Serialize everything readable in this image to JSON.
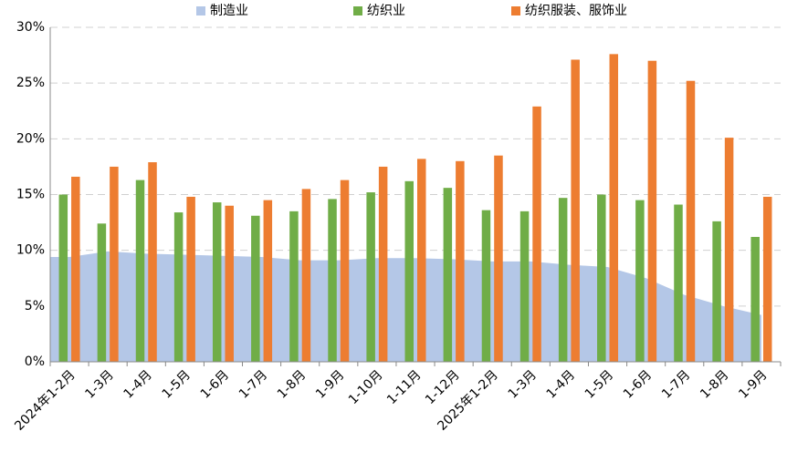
{
  "chart_data": {
    "type": "bar",
    "categories": [
      "2024年1-2月",
      "1-3月",
      "1-4月",
      "1-5月",
      "1-6月",
      "1-7月",
      "1-8月",
      "1-9月",
      "1-10月",
      "1-11月",
      "1-12月",
      "2025年1-2月",
      "1-3月",
      "1-4月",
      "1-5月",
      "1-6月",
      "1-7月",
      "1-8月",
      "1-9月"
    ],
    "series": [
      {
        "name": "制造业",
        "color": "#b4c7e7",
        "type": "area",
        "values": [
          9.4,
          9.9,
          9.7,
          9.6,
          9.5,
          9.4,
          9.1,
          9.1,
          9.3,
          9.3,
          9.2,
          9.0,
          9.0,
          8.7,
          8.5,
          7.5,
          6.0,
          5.0,
          4.2
        ]
      },
      {
        "name": "纺织业",
        "color": "#70ad47",
        "type": "bar",
        "values": [
          15.0,
          12.4,
          16.3,
          13.4,
          14.3,
          13.1,
          13.5,
          14.6,
          15.2,
          16.2,
          15.6,
          13.6,
          13.5,
          14.7,
          15.0,
          14.5,
          14.1,
          12.6,
          11.2
        ]
      },
      {
        "name": "纺织服装、服饰业",
        "color": "#ed7d31",
        "type": "bar",
        "values": [
          16.6,
          17.5,
          17.9,
          14.8,
          14.0,
          14.5,
          15.5,
          16.3,
          17.5,
          18.2,
          18.0,
          18.5,
          22.9,
          27.1,
          27.6,
          27.0,
          25.2,
          20.1,
          14.8
        ]
      }
    ],
    "ylim": [
      0,
      30
    ],
    "yticks": [
      {
        "value": 0,
        "label": "0%"
      },
      {
        "value": 5,
        "label": "5%"
      },
      {
        "value": 10,
        "label": "10%"
      },
      {
        "value": 15,
        "label": "15%"
      },
      {
        "value": 20,
        "label": "20%"
      },
      {
        "value": 25,
        "label": "25%"
      },
      {
        "value": 30,
        "label": "30%"
      }
    ],
    "grid": true,
    "legend": "top"
  }
}
